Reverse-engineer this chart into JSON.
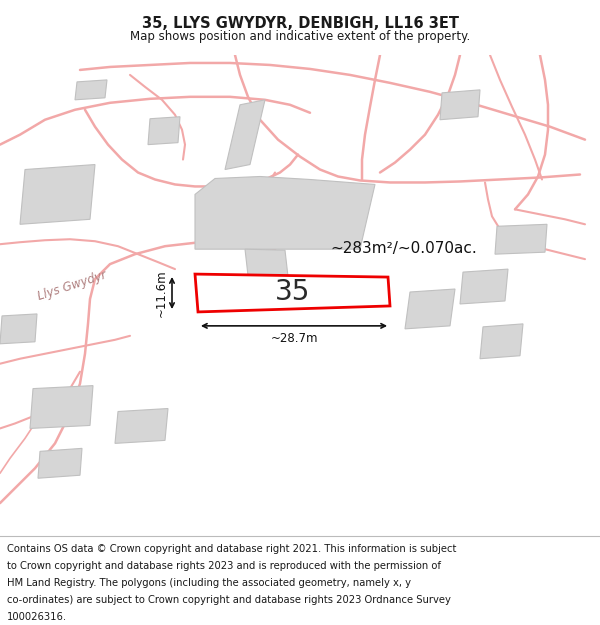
{
  "title": "35, LLYS GWYDYR, DENBIGH, LL16 3ET",
  "subtitle": "Map shows position and indicative extent of the property.",
  "footer_lines": [
    "Contains OS data © Crown copyright and database right 2021. This information is subject",
    "to Crown copyright and database rights 2023 and is reproduced with the permission of",
    "HM Land Registry. The polygons (including the associated geometry, namely x, y",
    "co-ordinates) are subject to Crown copyright and database rights 2023 Ordnance Survey",
    "100026316."
  ],
  "map_bg": "#f9f9f9",
  "road_color": "#f2a8a8",
  "building_fill": "#d6d6d6",
  "building_stroke": "#c0c0c0",
  "highlight_fill": "#ffffff",
  "highlight_stroke": "#ee0000",
  "area_text": "~283m²/~0.070ac.",
  "property_label": "35",
  "dim_width": "~28.7m",
  "dim_height": "~11.6m",
  "road_label": "Llys Gwydyr",
  "title_fontsize": 10.5,
  "subtitle_fontsize": 8.5,
  "footer_fontsize": 7.2,
  "label_fontsize": 20,
  "area_fontsize": 11,
  "dim_fontsize": 8.5,
  "road_label_fontsize": 8.5
}
